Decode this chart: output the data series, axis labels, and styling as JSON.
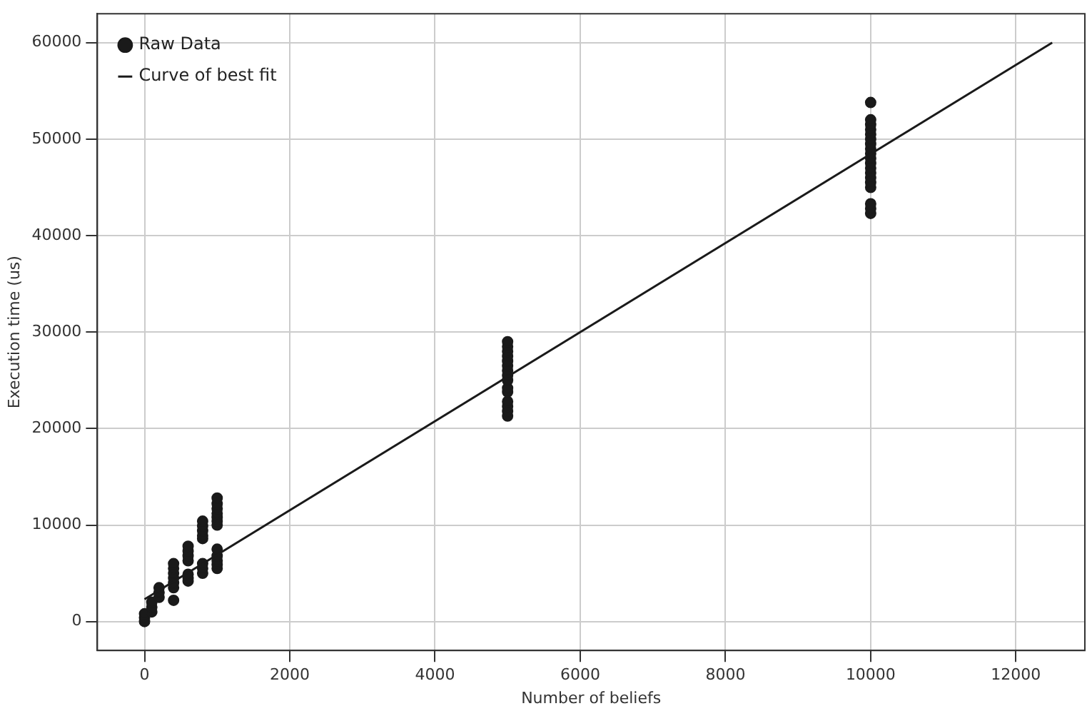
{
  "chart_data": {
    "type": "scatter",
    "xlabel": "Number of beliefs",
    "ylabel": "Execution time (us)",
    "xlim": [
      -650,
      12950
    ],
    "ylim": [
      -3000,
      63000
    ],
    "xticks": [
      0,
      2000,
      4000,
      6000,
      8000,
      10000,
      12000
    ],
    "yticks": [
      0,
      10000,
      20000,
      30000,
      40000,
      50000,
      60000
    ],
    "grid": true,
    "legend": "top left",
    "marker": "circle",
    "series": [
      {
        "name": "Raw Data",
        "type": "scatter",
        "color": "#1a1a1a",
        "x": [
          0,
          0,
          0,
          100,
          100,
          100,
          200,
          200,
          200,
          400,
          400,
          400,
          400,
          400,
          400,
          400,
          600,
          600,
          600,
          600,
          600,
          600,
          600,
          800,
          800,
          800,
          800,
          800,
          800,
          800,
          800,
          1000,
          1000,
          1000,
          1000,
          1000,
          1000,
          1000,
          1000,
          1000,
          1000,
          1000,
          1000,
          5000,
          5000,
          5000,
          5000,
          5000,
          5000,
          5000,
          5000,
          5000,
          5000,
          5000,
          5000,
          5000,
          5000,
          5000,
          10000,
          10000,
          10000,
          10000,
          10000,
          10000,
          10000,
          10000,
          10000,
          10000,
          10000,
          10000,
          10000,
          10000,
          10000,
          10000,
          10000,
          10000,
          10000
        ],
        "values": [
          0,
          400,
          800,
          1000,
          1500,
          2000,
          2500,
          3000,
          3500,
          2200,
          3500,
          4000,
          4500,
          5000,
          5500,
          6000,
          4200,
          4500,
          4900,
          6300,
          6800,
          7300,
          7800,
          5000,
          5500,
          6000,
          8600,
          8900,
          9400,
          9900,
          10400,
          5500,
          5900,
          6300,
          6800,
          7500,
          10000,
          10400,
          10800,
          11200,
          11700,
          12200,
          12800,
          21300,
          21800,
          22300,
          22800,
          23800,
          24200,
          25000,
          25500,
          26000,
          26500,
          27000,
          27500,
          28000,
          28500,
          29000,
          42300,
          42800,
          43300,
          45000,
          45500,
          46000,
          46500,
          47000,
          47500,
          48000,
          48500,
          49000,
          49500,
          50000,
          50500,
          51000,
          51500,
          52000,
          53800
        ]
      },
      {
        "name": "Curve of best fit",
        "type": "line",
        "color": "#1a1a1a",
        "line_style": "solid",
        "marker": "none",
        "x": [
          0,
          12500
        ],
        "values": [
          2300,
          60000
        ]
      }
    ]
  }
}
